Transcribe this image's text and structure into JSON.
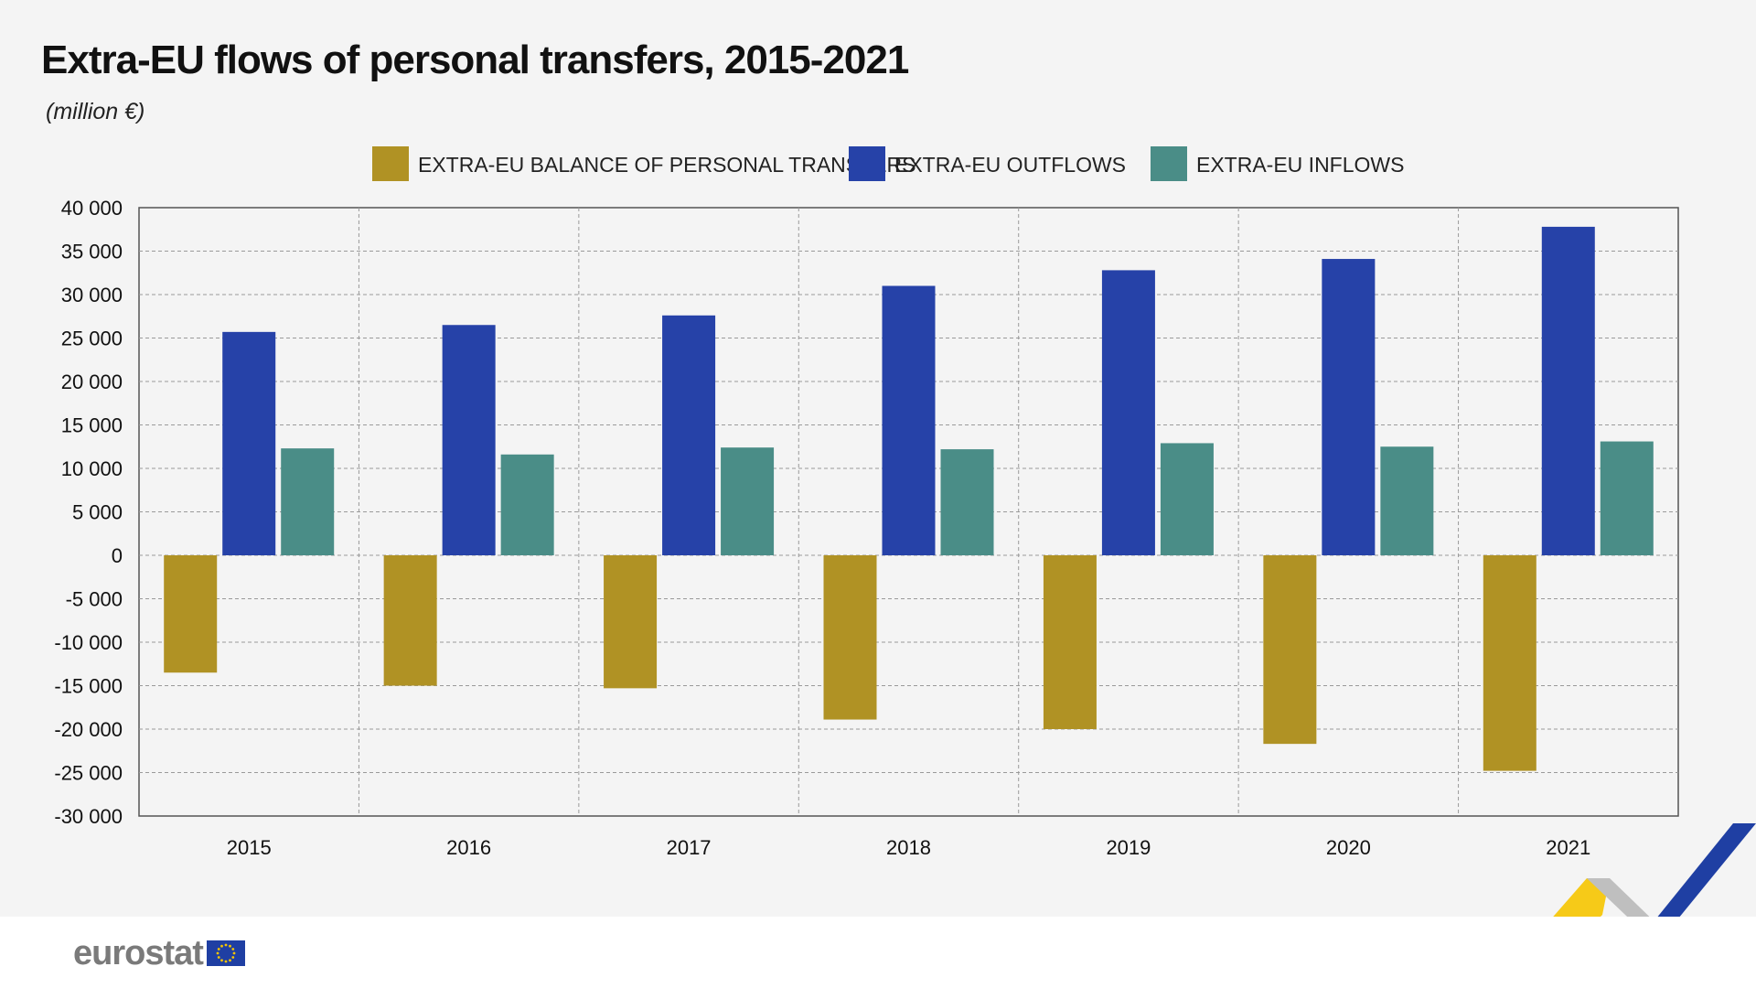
{
  "title": "Extra-EU flows of personal transfers, 2015-2021",
  "subtitle": "(million €)",
  "brand": "eurostat",
  "colors": {
    "balance": "#b09224",
    "outflows": "#2642a8",
    "inflows": "#4a8d87",
    "grid": "#9a9a9a",
    "background": "#f4f4f4"
  },
  "chart_data": {
    "type": "bar",
    "categories": [
      "2015",
      "2016",
      "2017",
      "2018",
      "2019",
      "2020",
      "2021"
    ],
    "series": [
      {
        "name": "EXTRA-EU BALANCE OF PERSONAL TRANSFERS",
        "values": [
          -13500,
          -15000,
          -15300,
          -18900,
          -20000,
          -21700,
          -24800
        ]
      },
      {
        "name": "EXTRA-EU OUTFLOWS",
        "values": [
          25700,
          26500,
          27600,
          31000,
          32800,
          34100,
          37800
        ]
      },
      {
        "name": "EXTRA-EU INFLOWS",
        "values": [
          12300,
          11600,
          12400,
          12200,
          12900,
          12500,
          13100
        ]
      }
    ],
    "yticks": [
      "40 000",
      "35 000",
      "30 000",
      "25 000",
      "20 000",
      "15 000",
      "10 000",
      "5 000",
      "0",
      "-5 000",
      "-10 000",
      "-15 000",
      "-20 000",
      "-25 000",
      "-30 000"
    ],
    "ylim": [
      -30000,
      40000
    ],
    "grid": true,
    "legend_position": "top"
  }
}
